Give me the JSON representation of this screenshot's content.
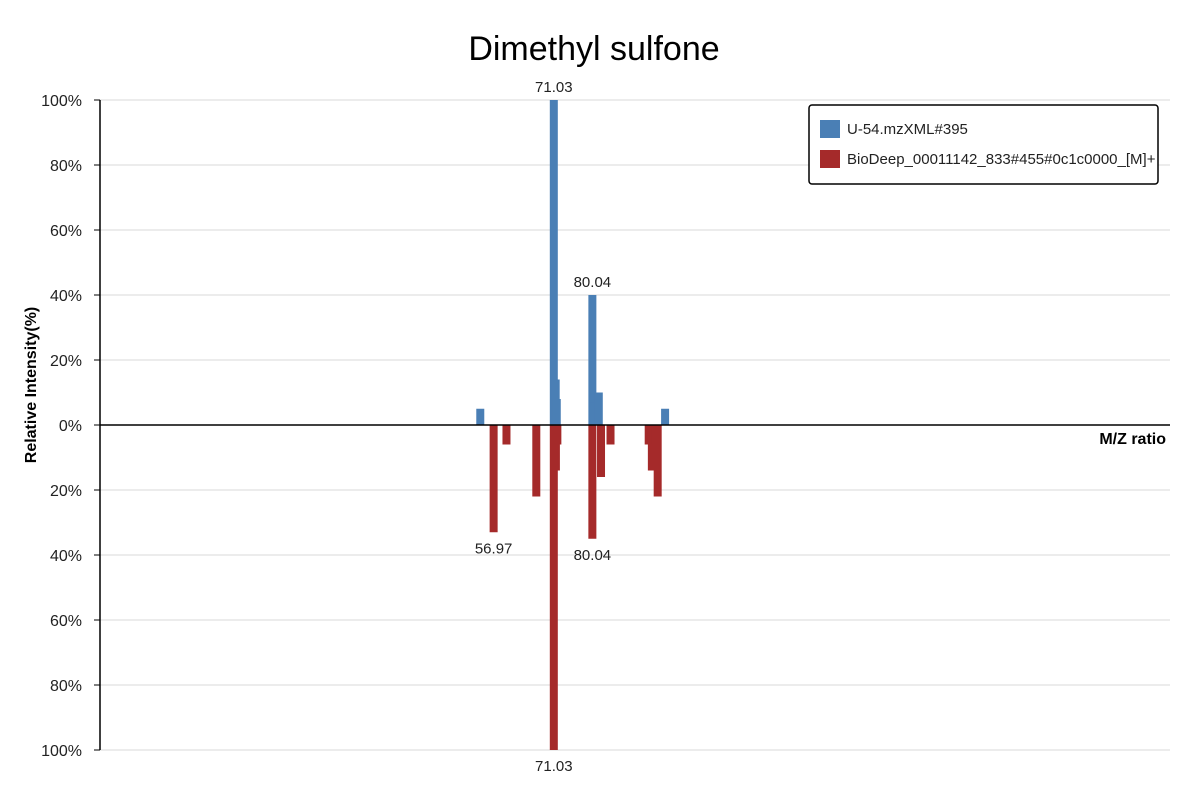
{
  "chart_data": {
    "type": "bar",
    "title": "Dimethyl sulfone",
    "xlabel": "M/Z ratio",
    "ylabel": "Relative Intensity(%)",
    "ylim": [
      -100,
      100
    ],
    "y_ticks": [
      "100%",
      "80%",
      "60%",
      "40%",
      "20%",
      "0%",
      "20%",
      "40%",
      "60%",
      "80%",
      "100%"
    ],
    "grid": true,
    "legend_position": "top-right",
    "series": [
      {
        "name": "U-54.mzXML#395",
        "color": "#4a7fb5",
        "direction": "up",
        "peaks": [
          {
            "mz": 53.85,
            "intensity": 5
          },
          {
            "mz": 71.03,
            "intensity": 100
          },
          {
            "mz": 71.47,
            "intensity": 14
          },
          {
            "mz": 71.72,
            "intensity": 8
          },
          {
            "mz": 80.04,
            "intensity": 40
          },
          {
            "mz": 80.5,
            "intensity": 7
          },
          {
            "mz": 81.54,
            "intensity": 10
          },
          {
            "mz": 97.03,
            "intensity": 5
          }
        ]
      },
      {
        "name": "BioDeep_00011142_833#455#0c1c0000_[M]+",
        "color": "#a52a2a",
        "direction": "down",
        "peaks": [
          {
            "mz": 56.97,
            "intensity": 33
          },
          {
            "mz": 59.97,
            "intensity": 6
          },
          {
            "mz": 66.94,
            "intensity": 22
          },
          {
            "mz": 71.03,
            "intensity": 100
          },
          {
            "mz": 71.52,
            "intensity": 14
          },
          {
            "mz": 71.86,
            "intensity": 6
          },
          {
            "mz": 80.04,
            "intensity": 35
          },
          {
            "mz": 82.06,
            "intensity": 16
          },
          {
            "mz": 84.28,
            "intensity": 6
          },
          {
            "mz": 93.2,
            "intensity": 6
          },
          {
            "mz": 93.94,
            "intensity": 14
          },
          {
            "mz": 95.3,
            "intensity": 22
          },
          {
            "mz": 94.74,
            "intensity": 6
          }
        ]
      }
    ],
    "annotations": [
      {
        "text": "71.03",
        "series": 0,
        "mz": 71.03
      },
      {
        "text": "80.04",
        "series": 0,
        "mz": 80.04
      },
      {
        "text": "56.97",
        "series": 1,
        "mz": 56.97
      },
      {
        "text": "80.04",
        "series": 1,
        "mz": 80.04
      },
      {
        "text": "71.03",
        "series": 1,
        "mz": 71.03
      }
    ],
    "x_domain": [
      -35,
      215
    ]
  }
}
